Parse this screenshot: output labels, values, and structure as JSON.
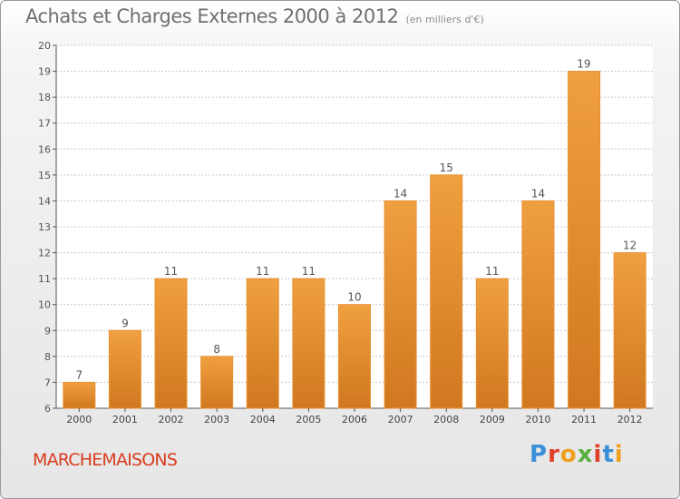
{
  "title": "Achats et Charges Externes 2000 à 2012",
  "subtitle": "(en milliers d'€)",
  "commune": "MARCHEMAISONS",
  "logo_text": "Proxiti",
  "colors": {
    "bar": "#f0a040",
    "bar_dark": "#d07820",
    "grid": "#c8c8c8",
    "axis": "#555555",
    "commune": "#d83c1e"
  },
  "chart_data": {
    "type": "bar",
    "categories": [
      "2000",
      "2001",
      "2002",
      "2003",
      "2004",
      "2005",
      "2006",
      "2007",
      "2008",
      "2009",
      "2010",
      "2011",
      "2012"
    ],
    "values": [
      7,
      9,
      11,
      8,
      11,
      11,
      10,
      14,
      15,
      11,
      14,
      19,
      12
    ],
    "data_labels": [
      "7",
      "9",
      "11",
      "8",
      "11",
      "11",
      "10",
      "14",
      "15",
      "11",
      "14",
      "19",
      "12"
    ],
    "ylim": [
      6,
      20
    ],
    "yticks": [
      6,
      7,
      8,
      9,
      10,
      11,
      12,
      13,
      14,
      15,
      16,
      17,
      18,
      19,
      20
    ],
    "grid": true
  }
}
